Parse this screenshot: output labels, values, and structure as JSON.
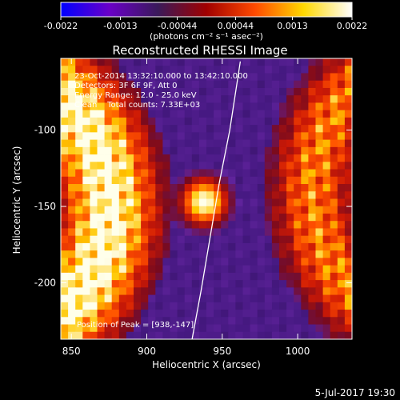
{
  "chart_data": {
    "type": "heatmap",
    "title": "Reconstructed RHESSI Image",
    "xlabel": "Heliocentric X (arcsec)",
    "ylabel": "Heliocentric Y (arcsec)",
    "xlim": [
      843,
      1036
    ],
    "ylim": [
      -237,
      -53
    ],
    "x_ticks": [
      850,
      900,
      950,
      1000
    ],
    "y_ticks": [
      -100,
      -150,
      -200
    ],
    "colorbar": {
      "min": -0.0022,
      "max": 0.0022,
      "ticks": [
        "-0.0022",
        "-0.0013",
        "-0.00044",
        "0.00044",
        "0.0013",
        "0.0022"
      ],
      "unit_label": "(photons cm⁻² s⁻¹ asec⁻²)",
      "colormap": [
        "#0000ff",
        "#6a00c8",
        "#3a1a5a",
        "#a00000",
        "#ff4a00",
        "#ffd800",
        "#ffffff"
      ]
    },
    "info_lines": [
      "23-Oct-2014 13:32:10.000 to 13:42:10.000",
      "Detectors: 3F 6F 9F, Att 0",
      "Energy Range: 12.0 - 25.0 keV",
      "Clean    Total counts: 7.33E+03"
    ],
    "peak_label": "Position of Peak = [938,-147]",
    "peak": {
      "x": 938,
      "y": -147
    },
    "limb": [
      [
        930,
        -237
      ],
      [
        936,
        -205
      ],
      [
        942,
        -170
      ],
      [
        948,
        -135
      ],
      [
        955,
        -100
      ],
      [
        962,
        -55
      ]
    ],
    "date_stamp": "5-Jul-2017 19:30"
  }
}
